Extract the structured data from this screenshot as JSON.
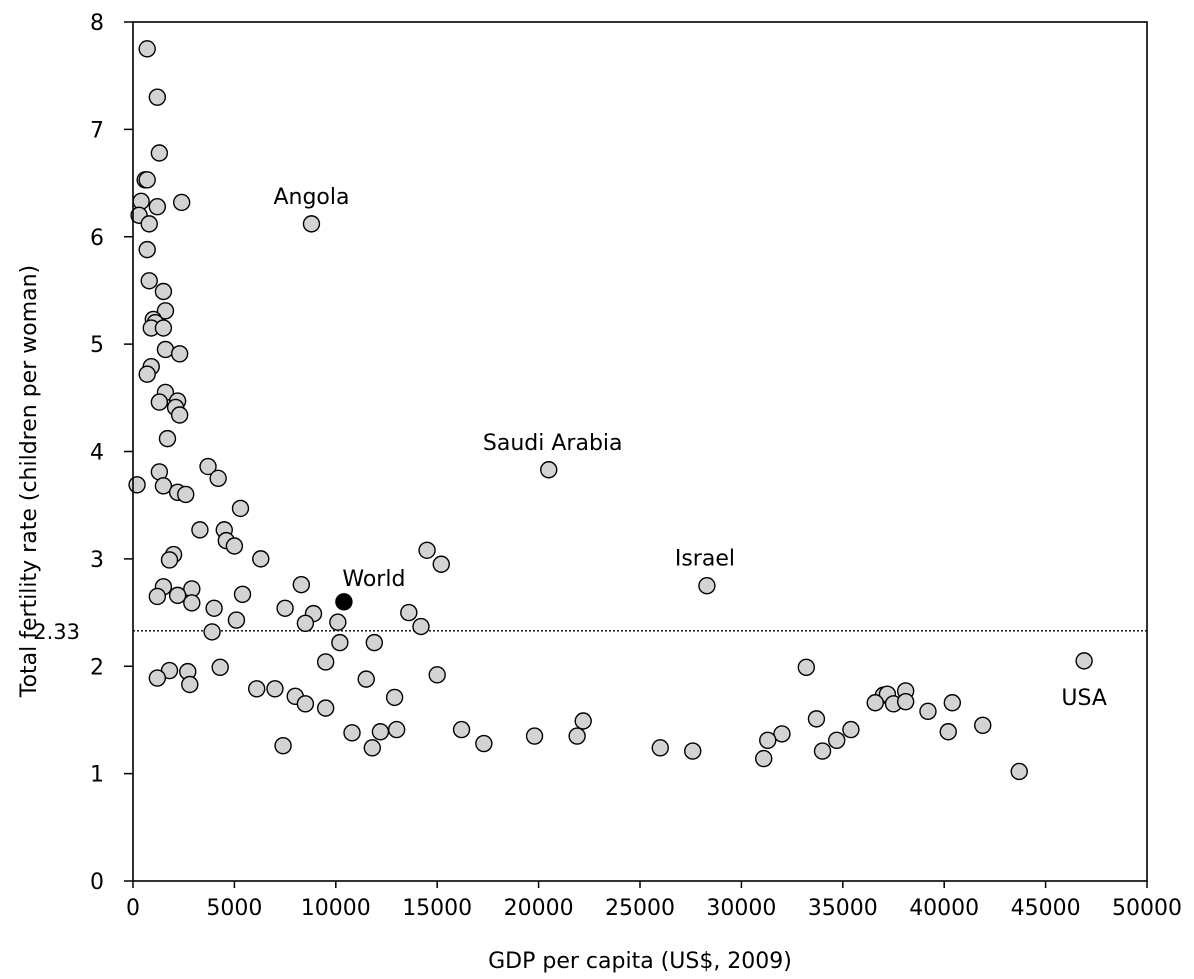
{
  "chart_data": {
    "type": "scatter",
    "xlabel": "GDP per capita (US$, 2009)",
    "ylabel": "Total fertility rate (children per woman)",
    "xlim": [
      0,
      50000
    ],
    "ylim": [
      0,
      8
    ],
    "xticks": [
      0,
      5000,
      10000,
      15000,
      20000,
      25000,
      30000,
      35000,
      40000,
      45000,
      50000
    ],
    "xtick_labels": [
      "0",
      "5000",
      "10000",
      "15000",
      "20000",
      "25000",
      "30000",
      "35000",
      "40000",
      "45000",
      "50000"
    ],
    "yticks": [
      0,
      1,
      2,
      3,
      4,
      5,
      6,
      7,
      8
    ],
    "ytick_labels": [
      "0",
      "1",
      "2",
      "3",
      "4",
      "5",
      "6",
      "7",
      "8"
    ],
    "grid": false,
    "reference_line": {
      "y": 2.33,
      "label": "2.33",
      "style": "dotted"
    },
    "colors": {
      "country": "#d3d3d3",
      "world": "#000000",
      "stroke": "#000000"
    },
    "world_point": {
      "x": 10400,
      "y": 2.6,
      "label": "World"
    },
    "annotations": [
      {
        "text": "Angola",
        "x": 8800,
        "y": 6.12
      },
      {
        "text": "Saudi Arabia",
        "x": 20500,
        "y": 3.83
      },
      {
        "text": "Israel",
        "x": 28300,
        "y": 2.75
      },
      {
        "text": "USA",
        "x": 46900,
        "y": 2.05
      }
    ],
    "series": [
      {
        "points": [
          [
            700,
            7.75
          ],
          [
            1200,
            7.3
          ],
          [
            1300,
            6.78
          ],
          [
            600,
            6.53
          ],
          [
            700,
            6.53
          ],
          [
            400,
            6.33
          ],
          [
            2400,
            6.32
          ],
          [
            1200,
            6.28
          ],
          [
            300,
            6.2
          ],
          [
            800,
            6.12
          ],
          [
            8800,
            6.12
          ],
          [
            700,
            5.88
          ],
          [
            800,
            5.59
          ],
          [
            1500,
            5.49
          ],
          [
            1600,
            5.31
          ],
          [
            1000,
            5.23
          ],
          [
            1100,
            5.2
          ],
          [
            900,
            5.15
          ],
          [
            1500,
            5.15
          ],
          [
            1600,
            4.95
          ],
          [
            2300,
            4.91
          ],
          [
            900,
            4.79
          ],
          [
            700,
            4.72
          ],
          [
            1600,
            4.55
          ],
          [
            2200,
            4.47
          ],
          [
            1300,
            4.46
          ],
          [
            2100,
            4.41
          ],
          [
            2300,
            4.34
          ],
          [
            1700,
            4.12
          ],
          [
            3700,
            3.86
          ],
          [
            1300,
            3.81
          ],
          [
            4200,
            3.75
          ],
          [
            20500,
            3.83
          ],
          [
            200,
            3.69
          ],
          [
            1500,
            3.68
          ],
          [
            2200,
            3.62
          ],
          [
            2600,
            3.6
          ],
          [
            5300,
            3.47
          ],
          [
            3300,
            3.27
          ],
          [
            4500,
            3.27
          ],
          [
            4600,
            3.17
          ],
          [
            5000,
            3.12
          ],
          [
            14500,
            3.08
          ],
          [
            2000,
            3.04
          ],
          [
            6300,
            3.0
          ],
          [
            1800,
            2.99
          ],
          [
            15200,
            2.95
          ],
          [
            8300,
            2.76
          ],
          [
            1500,
            2.74
          ],
          [
            2900,
            2.72
          ],
          [
            28300,
            2.75
          ],
          [
            1200,
            2.65
          ],
          [
            2200,
            2.66
          ],
          [
            5400,
            2.67
          ],
          [
            2900,
            2.59
          ],
          [
            4000,
            2.54
          ],
          [
            7500,
            2.54
          ],
          [
            13600,
            2.5
          ],
          [
            8900,
            2.49
          ],
          [
            5100,
            2.43
          ],
          [
            8500,
            2.4
          ],
          [
            10100,
            2.41
          ],
          [
            3900,
            2.32
          ],
          [
            14200,
            2.37
          ],
          [
            10200,
            2.22
          ],
          [
            11900,
            2.22
          ],
          [
            9500,
            2.04
          ],
          [
            33200,
            1.99
          ],
          [
            46900,
            2.05
          ],
          [
            4300,
            1.99
          ],
          [
            1800,
            1.96
          ],
          [
            2700,
            1.95
          ],
          [
            15000,
            1.92
          ],
          [
            1200,
            1.89
          ],
          [
            11500,
            1.88
          ],
          [
            2800,
            1.83
          ],
          [
            6100,
            1.79
          ],
          [
            7000,
            1.79
          ],
          [
            38100,
            1.77
          ],
          [
            37000,
            1.73
          ],
          [
            37200,
            1.74
          ],
          [
            8000,
            1.72
          ],
          [
            12900,
            1.71
          ],
          [
            36600,
            1.66
          ],
          [
            37500,
            1.65
          ],
          [
            38100,
            1.67
          ],
          [
            8500,
            1.65
          ],
          [
            40400,
            1.66
          ],
          [
            9500,
            1.61
          ],
          [
            39200,
            1.58
          ],
          [
            33700,
            1.51
          ],
          [
            22200,
            1.49
          ],
          [
            41900,
            1.45
          ],
          [
            16200,
            1.41
          ],
          [
            13000,
            1.41
          ],
          [
            12200,
            1.39
          ],
          [
            10800,
            1.38
          ],
          [
            32000,
            1.37
          ],
          [
            35400,
            1.41
          ],
          [
            40200,
            1.39
          ],
          [
            19800,
            1.35
          ],
          [
            21900,
            1.35
          ],
          [
            31300,
            1.31
          ],
          [
            34700,
            1.31
          ],
          [
            17300,
            1.28
          ],
          [
            7400,
            1.26
          ],
          [
            11800,
            1.24
          ],
          [
            26000,
            1.24
          ],
          [
            27600,
            1.21
          ],
          [
            34000,
            1.21
          ],
          [
            31100,
            1.14
          ],
          [
            43700,
            1.02
          ]
        ]
      }
    ]
  }
}
